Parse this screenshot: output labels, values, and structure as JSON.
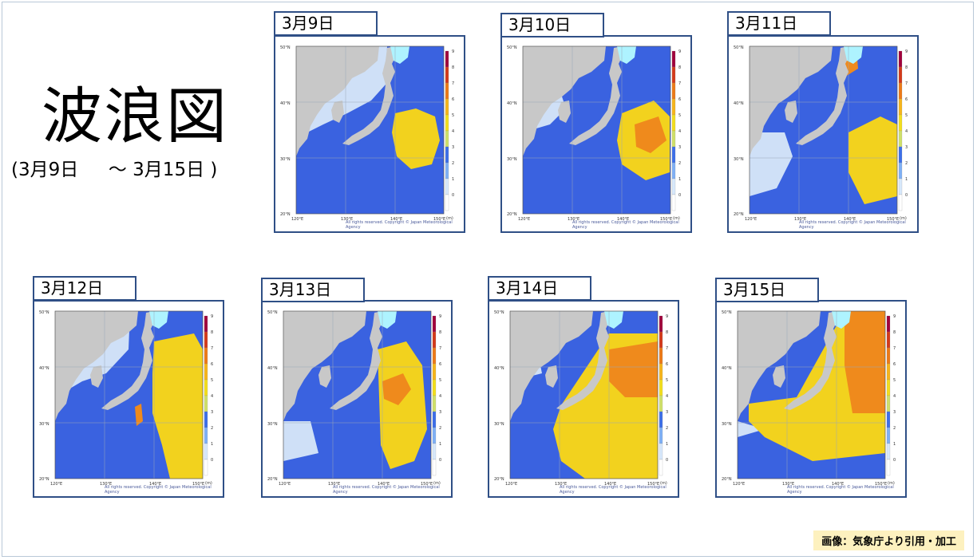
{
  "page": {
    "title": "波浪図",
    "period": "(3月9日　  ～ 3月15日 )",
    "source": "画像：気象庁より引用・加工"
  },
  "map": {
    "lat_labels": [
      "50°N",
      "40°N",
      "30°N",
      "20°N"
    ],
    "lon_labels": [
      "120°E",
      "130°E",
      "140°E",
      "150°E"
    ],
    "scale_labels": [
      "9",
      "8",
      "7",
      "6",
      "5",
      "4",
      "3",
      "2",
      "1",
      "0"
    ],
    "scale_unit": "(m)",
    "credit": "All rights reserved. Copyright © Japan Meteorological Agency",
    "scale_colors": [
      "#a0003c",
      "#d33a1b",
      "#ec7a18",
      "#f6b51c",
      "#f2de1e",
      "#cfe06a",
      "#3d6fe8",
      "#7fb0f5",
      "#d7e8fb",
      "#ffffff"
    ]
  },
  "panels": [
    {
      "date": "3月9日"
    },
    {
      "date": "3月10日"
    },
    {
      "date": "3月11日"
    },
    {
      "date": "3月12日"
    },
    {
      "date": "3月13日"
    },
    {
      "date": "3月14日"
    },
    {
      "date": "3月15日"
    }
  ]
}
